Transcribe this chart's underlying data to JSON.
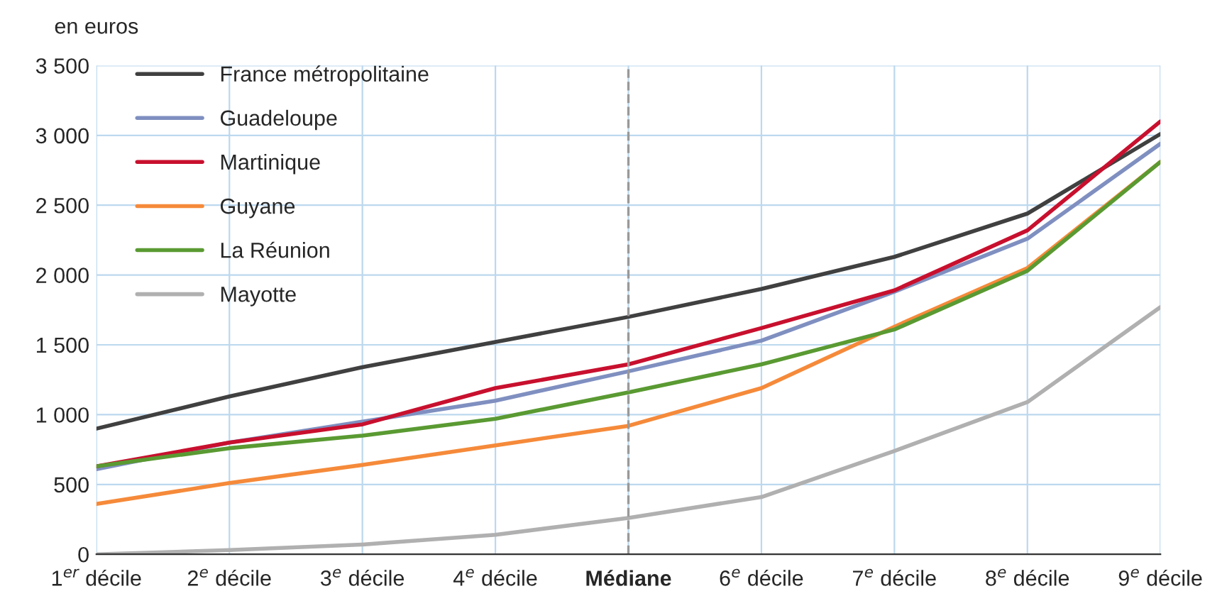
{
  "chart_data": {
    "type": "line",
    "ylabel": "en euros",
    "categories": [
      "1$^{er}$ décile",
      "2$^{e}$ décile",
      "3$^{e}$ décile",
      "4$^{e}$ décile",
      "Médiane",
      "6$^{e}$ décile",
      "7$^{e}$ décile",
      "8$^{e}$ décile",
      "9$^{e}$ décile"
    ],
    "series": [
      {
        "name": "France métropolitaine",
        "color": "#404040",
        "values": [
          900,
          1130,
          1340,
          1520,
          1700,
          1900,
          2130,
          2440,
          3010
        ]
      },
      {
        "name": "Guadeloupe",
        "color": "#7f8fc0",
        "values": [
          610,
          800,
          950,
          1100,
          1310,
          1530,
          1880,
          2260,
          2940
        ]
      },
      {
        "name": "Martinique",
        "color": "#c8102e",
        "values": [
          630,
          800,
          930,
          1190,
          1360,
          1620,
          1890,
          2320,
          3100
        ]
      },
      {
        "name": "Guyane",
        "color": "#f58a3a",
        "values": [
          360,
          510,
          640,
          780,
          920,
          1190,
          1630,
          2050,
          2810
        ]
      },
      {
        "name": "La Réunion",
        "color": "#5a9a32",
        "values": [
          630,
          760,
          850,
          970,
          1160,
          1360,
          1610,
          2030,
          2810
        ]
      },
      {
        "name": "Mayotte",
        "color": "#b0b0b0",
        "values": [
          0,
          30,
          70,
          140,
          260,
          410,
          740,
          1090,
          1770
        ]
      }
    ],
    "ylim": [
      0,
      3500
    ],
    "yticks": [
      0,
      500,
      {
        "value": 1000,
        "label": "1 000"
      },
      {
        "value": 1500,
        "label": "1 500"
      },
      {
        "value": 2000,
        "label": "2 000"
      },
      {
        "value": 2500,
        "label": "2 500"
      },
      {
        "value": 3000,
        "label": "3 000"
      },
      {
        "value": 3500,
        "label": "3 500"
      }
    ],
    "ref_lines": [
      {
        "axis": "x",
        "value": "Médiane",
        "color": "#999999",
        "line_style": "dashed"
      }
    ],
    "grid": true,
    "legend": "top left",
    "marker": "none",
    "line_style": "solid"
  }
}
